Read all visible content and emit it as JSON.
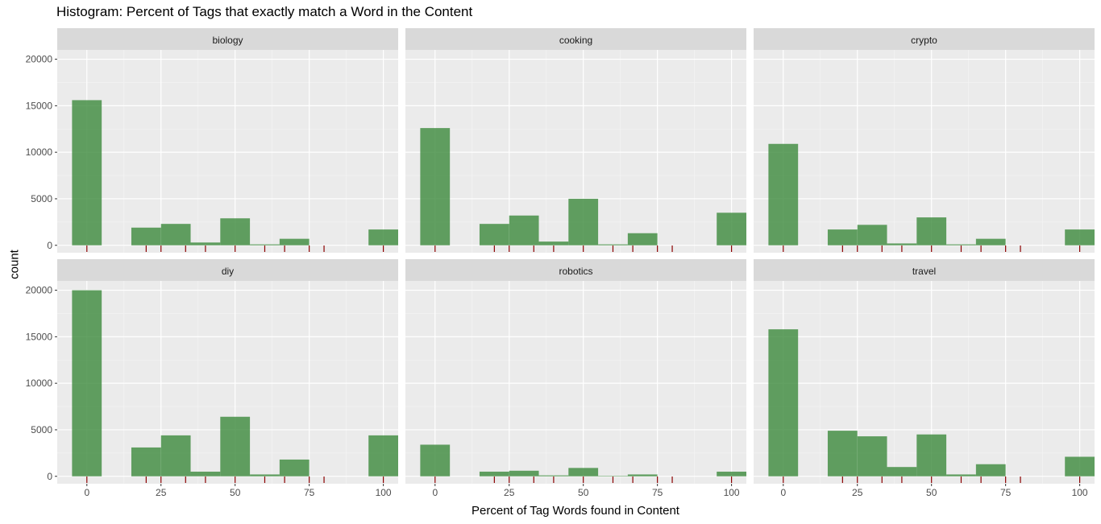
{
  "chart_data": {
    "type": "bar",
    "title": "Histogram: Percent of Tags that exactly match a Word in the Content",
    "xlabel": "Percent of Tag Words found in Content",
    "ylabel": "count",
    "xlim": [
      -10,
      105
    ],
    "xticks": [
      0,
      25,
      50,
      75,
      100
    ],
    "yticks": [
      0,
      5000,
      10000,
      15000,
      20000
    ],
    "ylim": [
      -800,
      21000
    ],
    "grid": true,
    "bin_width": 10,
    "bar_color": "#3c8a3c",
    "rug_color": "#8b0000",
    "bins": [
      [
        -5,
        5
      ],
      [
        15,
        25
      ],
      [
        25,
        35
      ],
      [
        35,
        45
      ],
      [
        45,
        55
      ],
      [
        55,
        65
      ],
      [
        65,
        75
      ],
      [
        95,
        105
      ]
    ],
    "rug_x": [
      0,
      20,
      25,
      33.3,
      40,
      50,
      60,
      66.7,
      75,
      80,
      100
    ],
    "panels": [
      {
        "name": "biology",
        "values": [
          15600,
          1900,
          2300,
          300,
          2900,
          100,
          700,
          1700
        ]
      },
      {
        "name": "cooking",
        "values": [
          12600,
          2300,
          3200,
          400,
          5000,
          100,
          1300,
          3500
        ]
      },
      {
        "name": "crypto",
        "values": [
          10900,
          1700,
          2200,
          200,
          3000,
          100,
          700,
          1700
        ]
      },
      {
        "name": "diy",
        "values": [
          20000,
          3100,
          4400,
          500,
          6400,
          200,
          1800,
          4400
        ]
      },
      {
        "name": "robotics",
        "values": [
          3400,
          500,
          600,
          100,
          900,
          50,
          200,
          500
        ]
      },
      {
        "name": "travel",
        "values": [
          15800,
          4900,
          4300,
          1000,
          4500,
          200,
          1300,
          2100
        ]
      }
    ]
  }
}
